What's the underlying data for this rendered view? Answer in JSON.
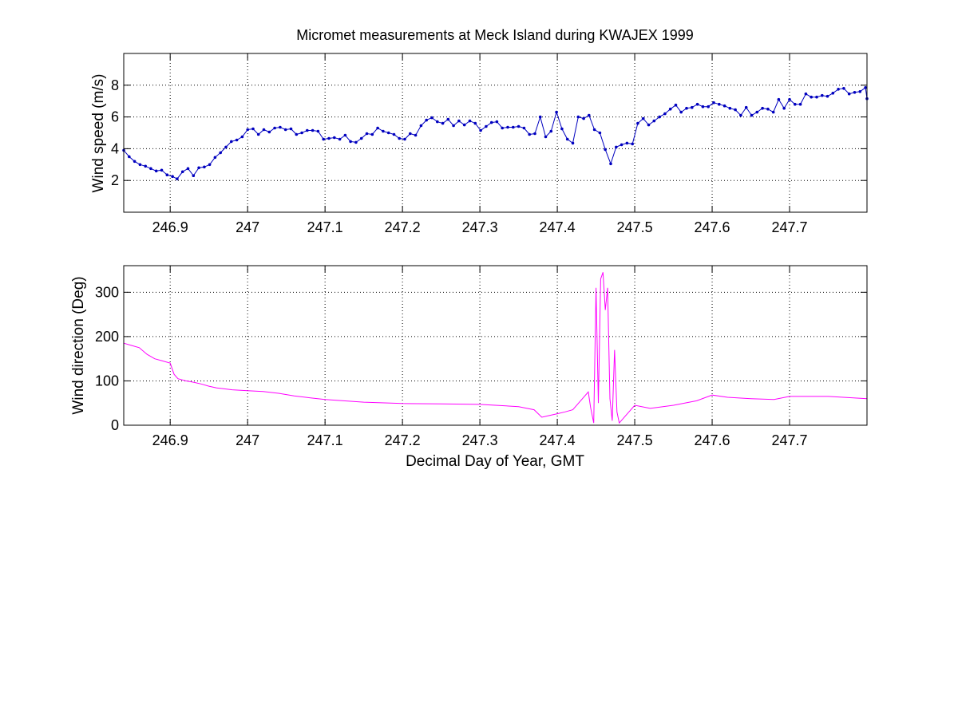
{
  "chart_data": [
    {
      "type": "line",
      "title": "Micromet measurements at Meck Island during KWAJEX 1999",
      "xlabel": "",
      "ylabel": "Wind speed (m/s)",
      "xlim": [
        246.84,
        247.8
      ],
      "ylim": [
        0,
        10
      ],
      "xticks": [
        246.9,
        247.0,
        247.1,
        247.2,
        247.3,
        247.4,
        247.5,
        247.6,
        247.7
      ],
      "xtick_labels": [
        "246.9",
        "247",
        "247.1",
        "247.2",
        "247.3",
        "247.4",
        "247.5",
        "247.6",
        "247.7"
      ],
      "yticks": [
        2,
        4,
        6,
        8
      ],
      "ytick_labels": [
        "2",
        "4",
        "6",
        "8"
      ],
      "grid": true,
      "marker": "dot",
      "series": [
        {
          "color": "#0000bf",
          "points": [
            [
              246.84,
              3.9
            ],
            [
              246.847,
              3.5
            ],
            [
              246.854,
              3.2
            ],
            [
              246.861,
              3.0
            ],
            [
              246.868,
              2.9
            ],
            [
              246.875,
              2.75
            ],
            [
              246.882,
              2.6
            ],
            [
              246.889,
              2.65
            ],
            [
              246.896,
              2.35
            ],
            [
              246.903,
              2.25
            ],
            [
              246.909,
              2.1
            ],
            [
              246.916,
              2.55
            ],
            [
              246.923,
              2.75
            ],
            [
              246.93,
              2.3
            ],
            [
              246.937,
              2.8
            ],
            [
              246.944,
              2.85
            ],
            [
              246.951,
              3.0
            ],
            [
              246.958,
              3.45
            ],
            [
              246.965,
              3.75
            ],
            [
              246.972,
              4.1
            ],
            [
              246.979,
              4.45
            ],
            [
              246.986,
              4.55
            ],
            [
              246.993,
              4.75
            ],
            [
              247.0,
              5.2
            ],
            [
              247.007,
              5.25
            ],
            [
              247.014,
              4.9
            ],
            [
              247.021,
              5.2
            ],
            [
              247.028,
              5.05
            ],
            [
              247.035,
              5.3
            ],
            [
              247.042,
              5.35
            ],
            [
              247.049,
              5.2
            ],
            [
              247.056,
              5.25
            ],
            [
              247.063,
              4.9
            ],
            [
              247.07,
              5.0
            ],
            [
              247.077,
              5.15
            ],
            [
              247.084,
              5.15
            ],
            [
              247.091,
              5.1
            ],
            [
              247.098,
              4.6
            ],
            [
              247.105,
              4.65
            ],
            [
              247.112,
              4.7
            ],
            [
              247.119,
              4.6
            ],
            [
              247.126,
              4.85
            ],
            [
              247.133,
              4.45
            ],
            [
              247.14,
              4.4
            ],
            [
              247.147,
              4.65
            ],
            [
              247.154,
              4.95
            ],
            [
              247.161,
              4.9
            ],
            [
              247.168,
              5.3
            ],
            [
              247.175,
              5.1
            ],
            [
              247.182,
              5.0
            ],
            [
              247.189,
              4.9
            ],
            [
              247.196,
              4.65
            ],
            [
              247.203,
              4.6
            ],
            [
              247.21,
              4.95
            ],
            [
              247.217,
              4.85
            ],
            [
              247.224,
              5.45
            ],
            [
              247.231,
              5.8
            ],
            [
              247.238,
              5.95
            ],
            [
              247.245,
              5.7
            ],
            [
              247.252,
              5.6
            ],
            [
              247.259,
              5.85
            ],
            [
              247.266,
              5.45
            ],
            [
              247.273,
              5.75
            ],
            [
              247.28,
              5.5
            ],
            [
              247.287,
              5.75
            ],
            [
              247.294,
              5.6
            ],
            [
              247.301,
              5.15
            ],
            [
              247.308,
              5.4
            ],
            [
              247.315,
              5.65
            ],
            [
              247.322,
              5.7
            ],
            [
              247.329,
              5.3
            ],
            [
              247.336,
              5.35
            ],
            [
              247.343,
              5.35
            ],
            [
              247.35,
              5.4
            ],
            [
              247.357,
              5.3
            ],
            [
              247.364,
              4.9
            ],
            [
              247.371,
              4.95
            ],
            [
              247.378,
              6.0
            ],
            [
              247.385,
              4.75
            ],
            [
              247.392,
              5.1
            ],
            [
              247.399,
              6.3
            ],
            [
              247.406,
              5.25
            ],
            [
              247.413,
              4.6
            ],
            [
              247.42,
              4.35
            ],
            [
              247.427,
              6.0
            ],
            [
              247.434,
              5.9
            ],
            [
              247.441,
              6.1
            ],
            [
              247.448,
              5.2
            ],
            [
              247.455,
              5.0
            ],
            [
              247.462,
              3.95
            ],
            [
              247.469,
              3.05
            ],
            [
              247.476,
              4.1
            ],
            [
              247.483,
              4.25
            ],
            [
              247.49,
              4.35
            ],
            [
              247.497,
              4.3
            ],
            [
              247.504,
              5.6
            ],
            [
              247.511,
              5.9
            ],
            [
              247.518,
              5.5
            ],
            [
              247.525,
              5.75
            ],
            [
              247.532,
              6.0
            ],
            [
              247.539,
              6.2
            ],
            [
              247.546,
              6.5
            ],
            [
              247.553,
              6.75
            ],
            [
              247.56,
              6.3
            ],
            [
              247.567,
              6.55
            ],
            [
              247.574,
              6.6
            ],
            [
              247.581,
              6.8
            ],
            [
              247.588,
              6.65
            ],
            [
              247.595,
              6.65
            ],
            [
              247.602,
              6.9
            ],
            [
              247.609,
              6.8
            ],
            [
              247.616,
              6.7
            ],
            [
              247.623,
              6.55
            ],
            [
              247.63,
              6.45
            ],
            [
              247.637,
              6.1
            ],
            [
              247.644,
              6.6
            ],
            [
              247.651,
              6.1
            ],
            [
              247.658,
              6.3
            ],
            [
              247.665,
              6.55
            ],
            [
              247.672,
              6.5
            ],
            [
              247.679,
              6.3
            ],
            [
              247.686,
              7.1
            ],
            [
              247.693,
              6.55
            ],
            [
              247.7,
              7.1
            ],
            [
              247.707,
              6.8
            ],
            [
              247.714,
              6.8
            ],
            [
              247.721,
              7.45
            ],
            [
              247.728,
              7.25
            ],
            [
              247.735,
              7.25
            ],
            [
              247.742,
              7.35
            ],
            [
              247.749,
              7.3
            ],
            [
              247.756,
              7.5
            ],
            [
              247.763,
              7.75
            ],
            [
              247.77,
              7.8
            ],
            [
              247.777,
              7.45
            ],
            [
              247.784,
              7.55
            ],
            [
              247.791,
              7.6
            ],
            [
              247.798,
              7.85
            ],
            [
              247.805,
              7.15
            ]
          ]
        }
      ]
    },
    {
      "type": "line",
      "title": "",
      "xlabel": "Decimal Day of Year, GMT",
      "ylabel": "Wind direction (Deg)",
      "xlim": [
        246.84,
        247.8
      ],
      "ylim": [
        0,
        360
      ],
      "xticks": [
        246.9,
        247.0,
        247.1,
        247.2,
        247.3,
        247.4,
        247.5,
        247.6,
        247.7
      ],
      "xtick_labels": [
        "246.9",
        "247",
        "247.1",
        "247.2",
        "247.3",
        "247.4",
        "247.5",
        "247.6",
        "247.7"
      ],
      "yticks": [
        0,
        100,
        200,
        300
      ],
      "ytick_labels": [
        "0",
        "100",
        "200",
        "300"
      ],
      "grid": true,
      "series": [
        {
          "color": "#ff00ff",
          "points": [
            [
              246.84,
              185
            ],
            [
              246.85,
              180
            ],
            [
              246.86,
              175
            ],
            [
              246.87,
              160
            ],
            [
              246.88,
              150
            ],
            [
              246.89,
              145
            ],
            [
              246.9,
              140
            ],
            [
              246.905,
              115
            ],
            [
              246.91,
              105
            ],
            [
              246.92,
              100
            ],
            [
              246.93,
              97
            ],
            [
              246.94,
              93
            ],
            [
              246.95,
              88
            ],
            [
              246.96,
              84
            ],
            [
              246.97,
              82
            ],
            [
              246.98,
              80
            ],
            [
              247.0,
              78
            ],
            [
              247.02,
              76
            ],
            [
              247.04,
              72
            ],
            [
              247.06,
              66
            ],
            [
              247.08,
              62
            ],
            [
              247.1,
              58
            ],
            [
              247.15,
              52
            ],
            [
              247.2,
              49
            ],
            [
              247.25,
              48
            ],
            [
              247.3,
              47
            ],
            [
              247.35,
              42
            ],
            [
              247.37,
              35
            ],
            [
              247.38,
              18
            ],
            [
              247.39,
              22
            ],
            [
              247.4,
              26
            ],
            [
              247.41,
              30
            ],
            [
              247.42,
              35
            ],
            [
              247.43,
              55
            ],
            [
              247.44,
              75
            ],
            [
              247.443,
              40
            ],
            [
              247.447,
              5
            ],
            [
              247.45,
              310
            ],
            [
              247.453,
              50
            ],
            [
              247.456,
              330
            ],
            [
              247.459,
              345
            ],
            [
              247.462,
              260
            ],
            [
              247.465,
              310
            ],
            [
              247.468,
              60
            ],
            [
              247.471,
              10
            ],
            [
              247.474,
              170
            ],
            [
              247.477,
              30
            ],
            [
              247.48,
              5
            ],
            [
              247.49,
              25
            ],
            [
              247.5,
              45
            ],
            [
              247.52,
              38
            ],
            [
              247.55,
              45
            ],
            [
              247.58,
              55
            ],
            [
              247.6,
              68
            ],
            [
              247.62,
              63
            ],
            [
              247.65,
              60
            ],
            [
              247.68,
              58
            ],
            [
              247.7,
              65
            ],
            [
              247.75,
              65
            ],
            [
              247.8,
              60
            ]
          ]
        }
      ]
    }
  ]
}
